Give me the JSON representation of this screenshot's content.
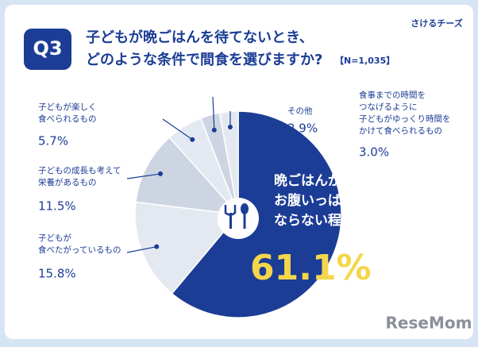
{
  "badge": "Q3",
  "logo": "さけるチーズ",
  "watermark": "ReseMom",
  "chart_data": {
    "type": "pie",
    "title": [
      "子どもが晩ごはんを待てないとき、",
      "どのような条件で間食を選びますか?"
    ],
    "subtitle": "【N=1,035】",
    "categories": [
      [
        "晩ごはんがあるので",
        "お腹いっぱいに",
        "ならない程度の量のもの"
      ],
      [
        "子どもが",
        "食べたがっているもの"
      ],
      [
        "子どもの成長も考えて",
        "栄養があるもの"
      ],
      [
        "子どもが楽しく",
        "食べられるもの"
      ],
      [
        "食事までの時間を",
        "つなげるように",
        "子どもがゆっくり時間を",
        "かけて食べられるもの"
      ],
      [
        "その他"
      ]
    ],
    "values": [
      61.1,
      15.8,
      11.5,
      5.7,
      3.0,
      2.9
    ],
    "value_labels": [
      "61.1%",
      "15.8%",
      "11.5%",
      "5.7%",
      "3.0%",
      "2.9%"
    ],
    "colors": [
      "#1c3d96",
      "#e4e9f1",
      "#cdd5e2",
      "#e4e9f1",
      "#cdd5e2",
      "#e4e9f1"
    ]
  }
}
